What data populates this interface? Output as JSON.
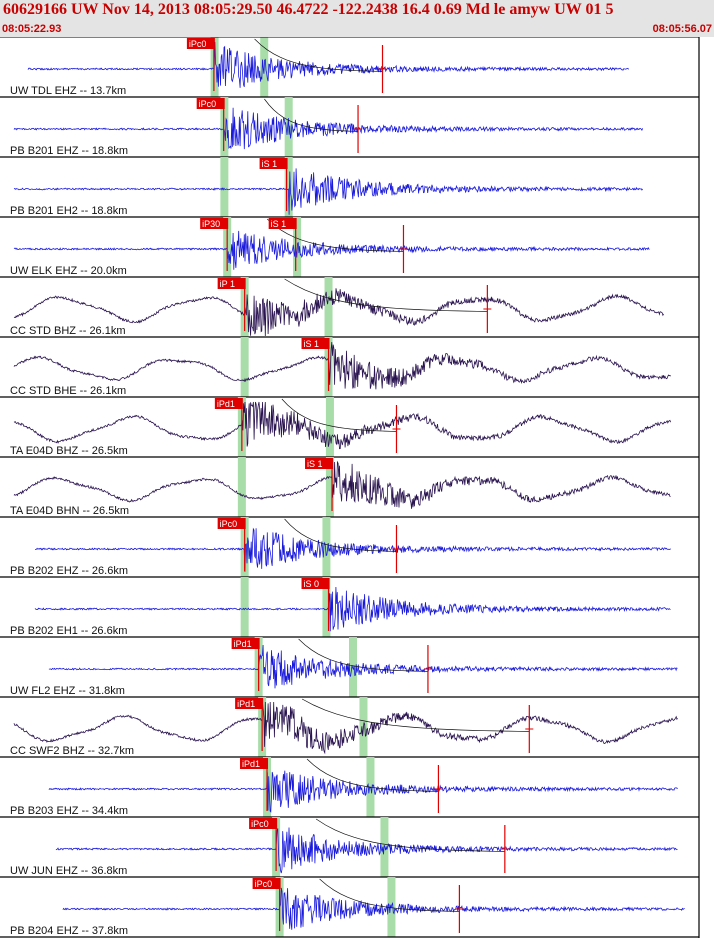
{
  "header": {
    "title": "60629166 UW Nov 14, 2013 08:05:29.50   46.4722 -122.2438 16.4 0.69 Md le amyw UW 01   5",
    "start_time": "08:05:22.93",
    "end_time": "08:05:56.07"
  },
  "colors": {
    "header_bg": "#e4e4e4",
    "header_text": "#c80000",
    "trace_blue": "#1a1adc",
    "trace_dark": "#2a1450",
    "pick_red": "#e00000",
    "window_green": "#a8dca8"
  },
  "chart_data": {
    "type": "line",
    "title": "",
    "xlabel": "",
    "ylabel": "",
    "traces": [
      {
        "label": "UW TDL EHZ -- 13.7km",
        "color": "blue",
        "long_period": false,
        "s": 0.04,
        "e": 0.9,
        "amp": 1.0,
        "picks": [
          {
            "text": "iPc0",
            "pos": 0.306
          }
        ],
        "green": [
          0.307,
          0.378
        ],
        "onset": 0.307,
        "coda": 0.49
      },
      {
        "label": "PB B201 EHZ -- 18.8km",
        "color": "blue",
        "long_period": false,
        "s": 0.02,
        "e": 0.92,
        "amp": 1.0,
        "picks": [
          {
            "text": "iPc0",
            "pos": 0.32
          }
        ],
        "green": [
          0.321,
          0.413
        ],
        "onset": 0.321,
        "coda": 0.455
      },
      {
        "label": "PB B201 EH2 -- 18.8km",
        "color": "blue",
        "long_period": false,
        "s": 0.02,
        "e": 0.92,
        "amp": 0.9,
        "picks": [
          {
            "text": "iS 1",
            "pos": 0.41
          }
        ],
        "green": [
          0.321,
          0.413
        ],
        "onset": 0.413,
        "coda": 0
      },
      {
        "label": "UW ELK EHZ -- 20.0km",
        "color": "blue",
        "long_period": false,
        "s": 0.02,
        "e": 0.93,
        "amp": 0.8,
        "picks": [
          {
            "text": "iP30",
            "pos": 0.325
          },
          {
            "text": "iS 1",
            "pos": 0.423
          }
        ],
        "green": [
          0.325,
          0.425
        ],
        "onset": 0.325,
        "coda": 0.52
      },
      {
        "label": "CC STD BHZ -- 26.1km",
        "color": "dark",
        "long_period": true,
        "s": 0.02,
        "e": 0.95,
        "amp": 1.0,
        "picks": [
          {
            "text": "iP 1",
            "pos": 0.35
          }
        ],
        "green": [
          0.35,
          0.47
        ],
        "onset": 0.35,
        "coda": 0.64
      },
      {
        "label": "CC STD BHE -- 26.1km",
        "color": "dark",
        "long_period": true,
        "s": 0.02,
        "e": 0.96,
        "amp": 0.9,
        "picks": [
          {
            "text": "iS 1",
            "pos": 0.47
          }
        ],
        "green": [
          0.35,
          0.47
        ],
        "onset": 0.47,
        "coda": 0
      },
      {
        "label": "TA E04D BHZ -- 26.5km",
        "color": "dark",
        "long_period": true,
        "s": 0.02,
        "e": 0.96,
        "amp": 1.0,
        "picks": [
          {
            "text": "iPd1",
            "pos": 0.346
          }
        ],
        "green": [
          0.346,
          0.472
        ],
        "onset": 0.346,
        "coda": 0.51
      },
      {
        "label": "TA E04D BHN -- 26.5km",
        "color": "dark",
        "long_period": true,
        "s": 0.02,
        "e": 0.96,
        "amp": 0.9,
        "picks": [
          {
            "text": "iS 1",
            "pos": 0.475
          }
        ],
        "green": [
          0.346,
          0.472
        ],
        "onset": 0.475,
        "coda": 0
      },
      {
        "label": "PB B202 EHZ -- 26.6km",
        "color": "blue",
        "long_period": false,
        "s": 0.05,
        "e": 0.96,
        "amp": 0.9,
        "picks": [
          {
            "text": "iPc0",
            "pos": 0.35
          }
        ],
        "green": [
          0.35,
          0.467
        ],
        "onset": 0.35,
        "coda": 0.51
      },
      {
        "label": "PB B202 EH1 -- 26.6km",
        "color": "blue",
        "long_period": false,
        "s": 0.05,
        "e": 0.96,
        "amp": 0.9,
        "picks": [
          {
            "text": "iS 0",
            "pos": 0.47
          }
        ],
        "green": [
          0.35,
          0.467
        ],
        "onset": 0.47,
        "coda": 0
      },
      {
        "label": "UW FL2 EHZ -- 31.8km",
        "color": "blue",
        "long_period": false,
        "s": 0.07,
        "e": 0.97,
        "amp": 0.9,
        "picks": [
          {
            "text": "iPd1",
            "pos": 0.37
          }
        ],
        "green": [
          0.37,
          0.505
        ],
        "onset": 0.37,
        "coda": 0.555
      },
      {
        "label": "CC SWF2 BHZ -- 32.7km",
        "color": "dark",
        "long_period": true,
        "s": 0.02,
        "e": 0.97,
        "amp": 1.0,
        "picks": [
          {
            "text": "iPd1",
            "pos": 0.375
          }
        ],
        "green": [
          0.375,
          0.52
        ],
        "onset": 0.375,
        "coda": 0.7
      },
      {
        "label": "PB B203 EHZ -- 34.4km",
        "color": "blue",
        "long_period": false,
        "s": 0.07,
        "e": 0.97,
        "amp": 0.9,
        "picks": [
          {
            "text": "iPd1",
            "pos": 0.382
          }
        ],
        "green": [
          0.382,
          0.53
        ],
        "onset": 0.382,
        "coda": 0.57
      },
      {
        "label": "UW JUN EHZ -- 36.8km",
        "color": "blue",
        "long_period": false,
        "s": 0.08,
        "e": 0.97,
        "amp": 0.9,
        "picks": [
          {
            "text": "iPc0",
            "pos": 0.395
          }
        ],
        "green": [
          0.395,
          0.55
        ],
        "onset": 0.395,
        "coda": 0.665
      },
      {
        "label": "PB B204 EHZ -- 37.8km",
        "color": "blue",
        "long_period": false,
        "s": 0.09,
        "e": 0.98,
        "amp": 0.9,
        "picks": [
          {
            "text": "iPc0",
            "pos": 0.4
          }
        ],
        "green": [
          0.4,
          0.56
        ],
        "onset": 0.4,
        "coda": 0.6
      }
    ]
  }
}
